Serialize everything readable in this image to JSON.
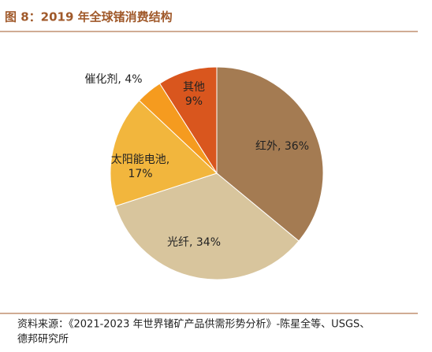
{
  "chart_data": {
    "type": "pie",
    "title": "图 8：2019 年全球锗消费结构",
    "values": [
      36,
      34,
      17,
      4,
      9
    ],
    "value_labels": [
      "红外, 36%",
      "光纤, 34%",
      "太阳能电池,\n17%",
      "催化剂, 4%",
      "其他\n9%"
    ],
    "colors": [
      "#a47b52",
      "#d8c59d",
      "#f2b63d",
      "#f59b1f",
      "#d9561e"
    ],
    "source": [
      "资料来源：《2021-2023 年世界锗矿产品供需形势分析》-陈星全等、USGS、",
      "德邦研究所"
    ]
  }
}
